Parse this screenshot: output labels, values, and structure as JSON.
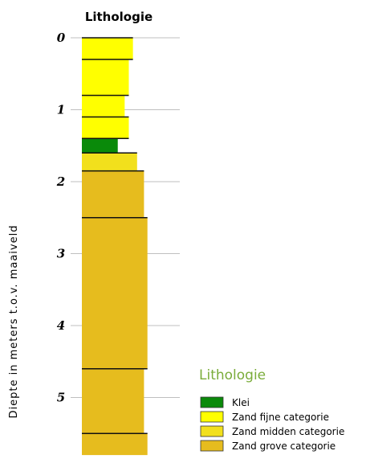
{
  "chart_data": {
    "type": "bar",
    "title": "Lithologie",
    "ylabel": "Diepte in meters t.o.v. maaiveld",
    "ylim": [
      0,
      5.8
    ],
    "y_ticks": [
      "0",
      "1",
      "2",
      "3",
      "4",
      "5"
    ],
    "layers": [
      {
        "top": 0.0,
        "bottom": 0.3,
        "width": 0.74,
        "type": "Zand fijne categorie"
      },
      {
        "top": 0.3,
        "bottom": 0.8,
        "width": 0.68,
        "type": "Zand fijne categorie"
      },
      {
        "top": 0.8,
        "bottom": 1.1,
        "width": 0.62,
        "type": "Zand fijne categorie"
      },
      {
        "top": 1.1,
        "bottom": 1.4,
        "width": 0.68,
        "type": "Zand fijne categorie"
      },
      {
        "top": 1.4,
        "bottom": 1.6,
        "width": 0.52,
        "type": "Klei"
      },
      {
        "top": 1.6,
        "bottom": 1.85,
        "width": 0.8,
        "type": "Zand midden categorie"
      },
      {
        "top": 1.85,
        "bottom": 2.5,
        "width": 0.9,
        "type": "Zand grove categorie"
      },
      {
        "top": 2.5,
        "bottom": 4.6,
        "width": 0.95,
        "type": "Zand grove categorie"
      },
      {
        "top": 4.6,
        "bottom": 5.5,
        "width": 0.9,
        "type": "Zand grove categorie"
      },
      {
        "top": 5.5,
        "bottom": 5.8,
        "width": 0.95,
        "type": "Zand grove categorie"
      }
    ],
    "legend": {
      "title": "Lithologie",
      "position": "bottom-right",
      "items": [
        {
          "label": "Klei",
          "color": "#0a8a0a"
        },
        {
          "label": "Zand fijne categorie",
          "color": "#ffff00"
        },
        {
          "label": "Zand midden categorie",
          "color": "#f2e01c"
        },
        {
          "label": "Zand grove categorie",
          "color": "#e6bc1e"
        }
      ]
    },
    "grid": true
  }
}
